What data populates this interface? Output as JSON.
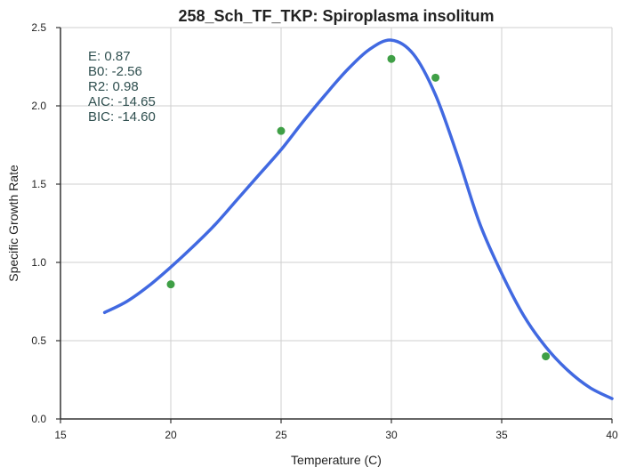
{
  "chart_data": {
    "type": "scatter",
    "title": "258_Sch_TF_TKP: Spiroplasma insolitum",
    "xlabel": "Temperature (C)",
    "ylabel": "Specific Growth Rate",
    "xlim": [
      15,
      40
    ],
    "ylim": [
      0,
      2.5
    ],
    "x_ticks": [
      "15",
      "20",
      "25",
      "30",
      "35",
      "40"
    ],
    "y_ticks": [
      "0.0",
      "0.5",
      "1.0",
      "1.5",
      "2.0",
      "2.5"
    ],
    "grid": true,
    "series": [
      {
        "type": "scatter",
        "color": "#3f9f46",
        "points": [
          {
            "x": 20,
            "y": 0.86
          },
          {
            "x": 25,
            "y": 1.84
          },
          {
            "x": 30,
            "y": 2.3
          },
          {
            "x": 32,
            "y": 2.18
          },
          {
            "x": 37,
            "y": 0.4
          }
        ]
      },
      {
        "type": "line",
        "color": "#4169e1",
        "points": [
          {
            "x": 17,
            "y": 0.68
          },
          {
            "x": 18,
            "y": 0.75
          },
          {
            "x": 19,
            "y": 0.85
          },
          {
            "x": 20,
            "y": 0.97
          },
          {
            "x": 21,
            "y": 1.1
          },
          {
            "x": 22,
            "y": 1.24
          },
          {
            "x": 23,
            "y": 1.4
          },
          {
            "x": 24,
            "y": 1.56
          },
          {
            "x": 25,
            "y": 1.72
          },
          {
            "x": 26,
            "y": 1.9
          },
          {
            "x": 27,
            "y": 2.07
          },
          {
            "x": 28,
            "y": 2.23
          },
          {
            "x": 29,
            "y": 2.36
          },
          {
            "x": 30,
            "y": 2.42
          },
          {
            "x": 31,
            "y": 2.33
          },
          {
            "x": 32,
            "y": 2.07
          },
          {
            "x": 33,
            "y": 1.68
          },
          {
            "x": 34,
            "y": 1.25
          },
          {
            "x": 35,
            "y": 0.93
          },
          {
            "x": 36,
            "y": 0.66
          },
          {
            "x": 37,
            "y": 0.46
          },
          {
            "x": 38,
            "y": 0.31
          },
          {
            "x": 39,
            "y": 0.2
          },
          {
            "x": 40,
            "y": 0.13
          }
        ]
      }
    ],
    "annotations": [
      {
        "label": "E:  0.87"
      },
      {
        "label": "B0:  -2.56"
      },
      {
        "label": "R2:  0.98"
      },
      {
        "label": "AIC: -14.65"
      },
      {
        "label": "BIC: -14.60"
      }
    ]
  }
}
